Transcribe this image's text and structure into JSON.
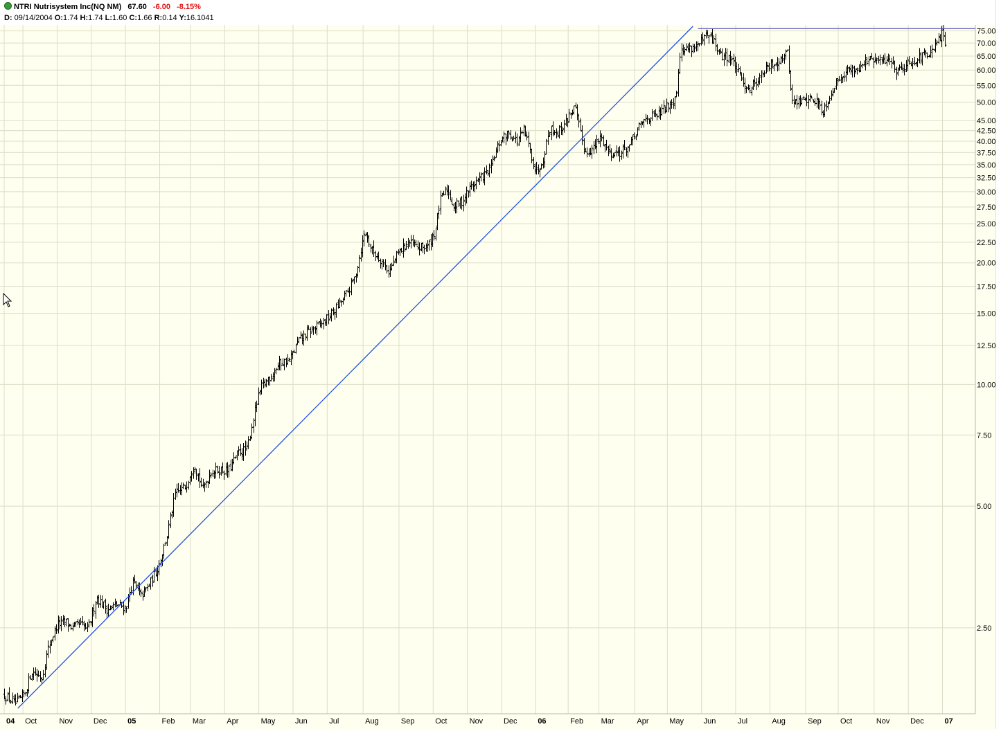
{
  "header": {
    "symbol_name": "NTRI Nutrisystem Inc(NQ NM)",
    "last": "67.60",
    "change": "-6.00",
    "change_pct": "-8.15%",
    "ohlc": {
      "date_label": "D:",
      "date": "09/14/2004",
      "o_label": "O:",
      "o": "1.74",
      "h_label": "H:",
      "h": "1.74",
      "l_label": "L:",
      "l": "1.60",
      "c_label": "C:",
      "c": "1.66",
      "r_label": "R:",
      "r": "0.14",
      "y_label": "Y:",
      "y": "16.1041"
    }
  },
  "colors": {
    "background": "#fffff0",
    "grid": "#dcdcc8",
    "bars": "#000000",
    "trendline": "#2050e0",
    "hline": "#5050c0",
    "down": "#e01010"
  },
  "chart_data": {
    "type": "ohlc",
    "scale": "log",
    "ylim": [
      1.55,
      77
    ],
    "y_ticks": [
      "75.00",
      "70.00",
      "65.00",
      "60.00",
      "55.00",
      "50.00",
      "45.00",
      "42.50",
      "40.00",
      "37.50",
      "35.00",
      "32.50",
      "30.00",
      "27.50",
      "25.00",
      "22.50",
      "20.00",
      "17.50",
      "15.00",
      "12.50",
      "10.00",
      "7.50",
      "5.00",
      "2.50"
    ],
    "x_ticks": [
      {
        "label": "04",
        "t": 0.0,
        "bold": true
      },
      {
        "label": "Oct",
        "t": 0.55
      },
      {
        "label": "Nov",
        "t": 1.55
      },
      {
        "label": "Dec",
        "t": 2.55
      },
      {
        "label": "05",
        "t": 3.55,
        "bold": true
      },
      {
        "label": "Feb",
        "t": 4.55
      },
      {
        "label": "Mar",
        "t": 5.45
      },
      {
        "label": "Apr",
        "t": 6.45
      },
      {
        "label": "May",
        "t": 7.45
      },
      {
        "label": "Jun",
        "t": 8.45
      },
      {
        "label": "Jul",
        "t": 9.45
      },
      {
        "label": "Aug",
        "t": 10.5
      },
      {
        "label": "Sep",
        "t": 11.55
      },
      {
        "label": "Oct",
        "t": 12.55
      },
      {
        "label": "Nov",
        "t": 13.55
      },
      {
        "label": "Dec",
        "t": 14.55
      },
      {
        "label": "06",
        "t": 15.55,
        "bold": true
      },
      {
        "label": "Feb",
        "t": 16.5
      },
      {
        "label": "Mar",
        "t": 17.4
      },
      {
        "label": "Apr",
        "t": 18.45
      },
      {
        "label": "May",
        "t": 19.4
      },
      {
        "label": "Jun",
        "t": 20.4
      },
      {
        "label": "Jul",
        "t": 21.4
      },
      {
        "label": "Aug",
        "t": 22.4
      },
      {
        "label": "Sep",
        "t": 23.45
      },
      {
        "label": "Oct",
        "t": 24.4
      },
      {
        "label": "Nov",
        "t": 25.45
      },
      {
        "label": "Dec",
        "t": 26.45
      },
      {
        "label": "07",
        "t": 27.45,
        "bold": true
      }
    ],
    "x_range_months": [
      0,
      28.25
    ],
    "price_path": [
      [
        0.0,
        1.7
      ],
      [
        0.35,
        1.62
      ],
      [
        0.6,
        1.72
      ],
      [
        0.8,
        1.95
      ],
      [
        1.1,
        1.88
      ],
      [
        1.3,
        2.25
      ],
      [
        1.55,
        2.55
      ],
      [
        1.8,
        2.58
      ],
      [
        2.0,
        2.5
      ],
      [
        2.2,
        2.55
      ],
      [
        2.45,
        2.48
      ],
      [
        2.7,
        2.98
      ],
      [
        3.0,
        2.78
      ],
      [
        3.3,
        2.85
      ],
      [
        3.55,
        2.8
      ],
      [
        3.75,
        3.25
      ],
      [
        4.0,
        3.0
      ],
      [
        4.25,
        3.2
      ],
      [
        4.5,
        3.55
      ],
      [
        4.75,
        4.2
      ],
      [
        5.0,
        5.35
      ],
      [
        5.3,
        5.6
      ],
      [
        5.55,
        6.4
      ],
      [
        5.8,
        5.5
      ],
      [
        6.05,
        6.1
      ],
      [
        6.3,
        6.15
      ],
      [
        6.55,
        6.1
      ],
      [
        6.85,
        6.8
      ],
      [
        7.1,
        6.9
      ],
      [
        7.35,
        8.8
      ],
      [
        7.5,
        9.8
      ],
      [
        7.75,
        10.4
      ],
      [
        8.05,
        11.3
      ],
      [
        8.35,
        11.5
      ],
      [
        8.6,
        12.8
      ],
      [
        8.9,
        13.5
      ],
      [
        9.2,
        14.0
      ],
      [
        9.5,
        14.7
      ],
      [
        9.8,
        15.8
      ],
      [
        10.05,
        17.0
      ],
      [
        10.25,
        18.4
      ],
      [
        10.45,
        22.0
      ],
      [
        10.55,
        24.0
      ],
      [
        10.75,
        21.5
      ],
      [
        11.05,
        20.2
      ],
      [
        11.25,
        19.0
      ],
      [
        11.5,
        21.0
      ],
      [
        11.8,
        22.5
      ],
      [
        12.1,
        21.8
      ],
      [
        12.4,
        22.0
      ],
      [
        12.6,
        24.0
      ],
      [
        12.75,
        28.5
      ],
      [
        12.95,
        30.5
      ],
      [
        13.15,
        27.5
      ],
      [
        13.4,
        28.5
      ],
      [
        13.65,
        31.0
      ],
      [
        13.95,
        32.5
      ],
      [
        14.2,
        34.0
      ],
      [
        14.5,
        40.0
      ],
      [
        14.75,
        42.0
      ],
      [
        15.0,
        40.0
      ],
      [
        15.2,
        42.5
      ],
      [
        15.4,
        37.5
      ],
      [
        15.55,
        33.5
      ],
      [
        15.75,
        36.0
      ],
      [
        15.95,
        43.0
      ],
      [
        16.2,
        42.0
      ],
      [
        16.45,
        45.0
      ],
      [
        16.55,
        47.0
      ],
      [
        16.7,
        48.5
      ],
      [
        16.85,
        42.0
      ],
      [
        17.0,
        37.5
      ],
      [
        17.25,
        38.5
      ],
      [
        17.45,
        41.0
      ],
      [
        17.7,
        37.5
      ],
      [
        18.0,
        37.5
      ],
      [
        18.3,
        39.0
      ],
      [
        18.55,
        43.0
      ],
      [
        18.8,
        46.0
      ],
      [
        19.05,
        46.0
      ],
      [
        19.3,
        48.0
      ],
      [
        19.5,
        50.0
      ],
      [
        19.65,
        51.5
      ],
      [
        19.75,
        66.0
      ],
      [
        19.95,
        68.0
      ],
      [
        20.15,
        68.5
      ],
      [
        20.35,
        69.5
      ],
      [
        20.55,
        73.0
      ],
      [
        20.75,
        71.0
      ],
      [
        20.95,
        65.0
      ],
      [
        21.2,
        65.0
      ],
      [
        21.4,
        61.0
      ],
      [
        21.6,
        56.0
      ],
      [
        21.8,
        54.0
      ],
      [
        22.0,
        56.5
      ],
      [
        22.25,
        60.0
      ],
      [
        22.5,
        62.0
      ],
      [
        22.7,
        64.0
      ],
      [
        22.9,
        66.5
      ],
      [
        23.05,
        50.0
      ],
      [
        23.25,
        50.0
      ],
      [
        23.5,
        51.0
      ],
      [
        23.75,
        50.5
      ],
      [
        23.95,
        47.5
      ],
      [
        24.2,
        53.0
      ],
      [
        24.45,
        58.0
      ],
      [
        24.7,
        60.0
      ],
      [
        24.95,
        60.5
      ],
      [
        25.15,
        63.0
      ],
      [
        25.4,
        63.5
      ],
      [
        25.65,
        63.0
      ],
      [
        25.9,
        64.0
      ],
      [
        26.1,
        60.0
      ],
      [
        26.4,
        62.0
      ],
      [
        26.65,
        64.0
      ],
      [
        26.9,
        65.0
      ],
      [
        27.15,
        66.0
      ],
      [
        27.35,
        72.0
      ],
      [
        27.45,
        73.6
      ],
      [
        27.55,
        67.6
      ]
    ],
    "hline": {
      "t_from": 20.3,
      "value": 76.0
    },
    "trendline": {
      "from": [
        0.4,
        1.58
      ],
      "to": [
        20.15,
        77.0
      ]
    }
  }
}
